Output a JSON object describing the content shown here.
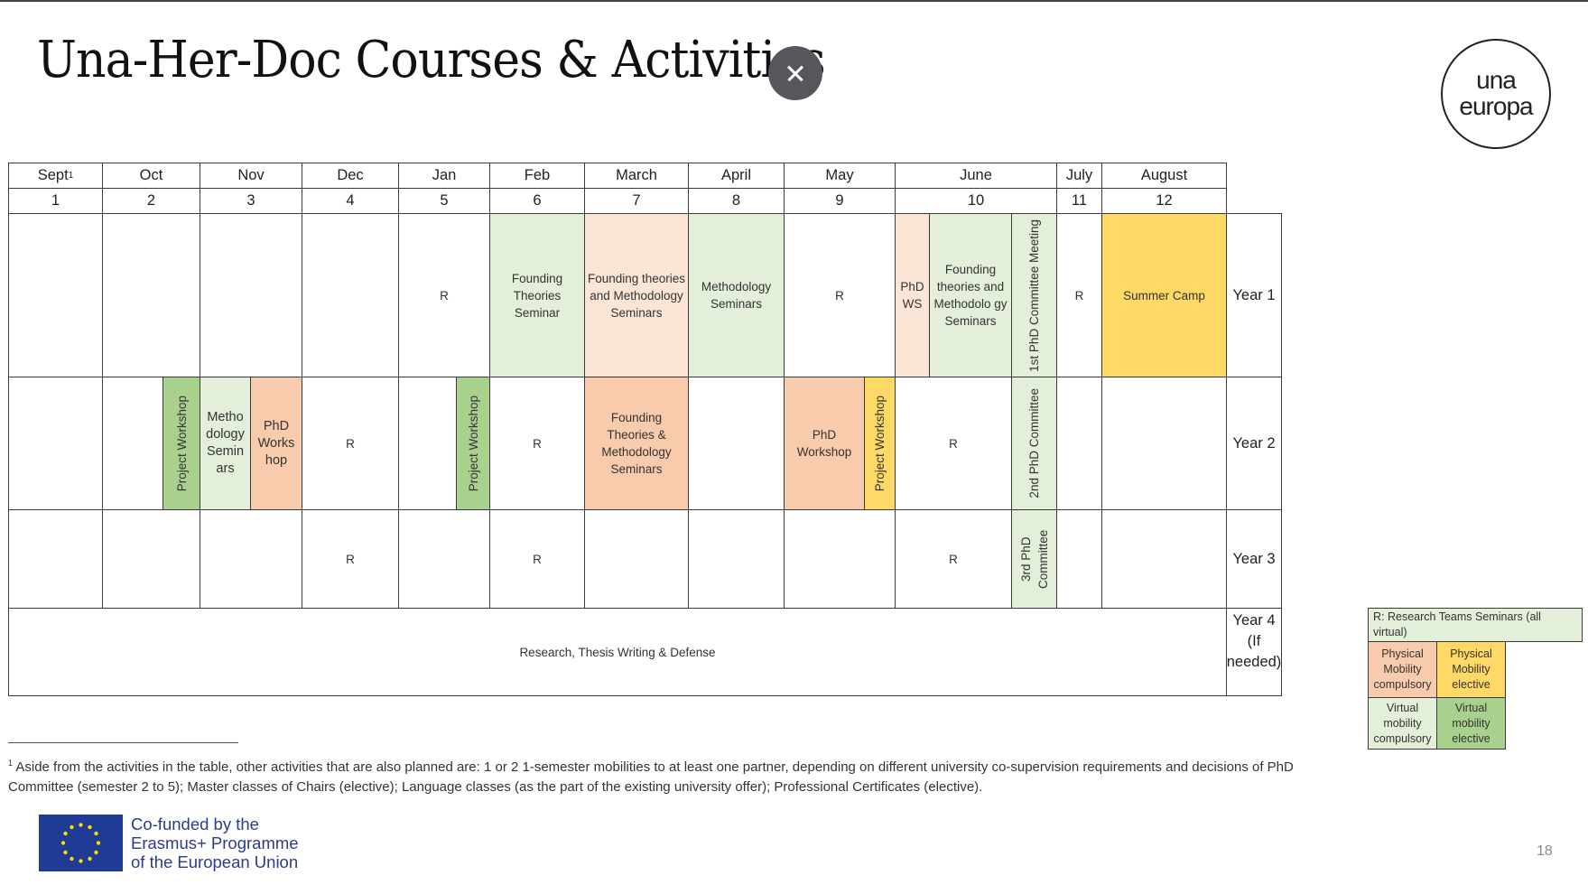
{
  "title": "Una-Her-Doc Courses & Activities",
  "close_icon": "close-icon",
  "logo": {
    "line1": "una",
    "line2": "europa"
  },
  "table": {
    "months": [
      "Sept",
      "Oct",
      "Nov",
      "Dec",
      "Jan",
      "Feb",
      "March",
      "April",
      "May",
      "June",
      "July",
      "August"
    ],
    "sept_footnote_mark": "1",
    "numbers": [
      "1",
      "2",
      "3",
      "4",
      "5",
      "6",
      "7",
      "8",
      "9",
      "10",
      "11",
      "12"
    ],
    "years": [
      "Year 1",
      "Year 2",
      "Year 3",
      "Year 4 (If needed)"
    ],
    "year1": {
      "jan": "R",
      "feb": "Founding Theories Seminar",
      "march": "Founding theories and Methodology Seminars",
      "april": "Methodology Seminars",
      "may": "R",
      "june_phd_ws": "PhD WS",
      "june_founding": "Founding theories and Methodolo gy Seminars",
      "june_committee": "1st PhD Committee Meeting",
      "july": "R",
      "august": "Summer Camp"
    },
    "year2": {
      "oct_project": "Project Workshop",
      "nov_methodology": "Metho dology Semin ars",
      "nov_phd": "PhD Works hop",
      "dec": "R",
      "jan_project": "Project Workshop",
      "feb": "R",
      "march": "Founding Theories & Methodology Seminars",
      "may_phd": "PhD Workshop",
      "may_project": "Project Workshop",
      "june": "R",
      "june_committee": "2nd PhD Committee"
    },
    "year3": {
      "dec": "R",
      "feb": "R",
      "june": "R",
      "june_committee": "3rd PhD Committee"
    },
    "year4": {
      "all": "Research, Thesis Writing & Defense"
    }
  },
  "legend": {
    "r": "R: Research Teams Seminars (all virtual)",
    "physical_compulsory": "Physical Mobility compulsory",
    "physical_elective": "Physical Mobility elective",
    "virtual_compulsory": "Virtual mobility compulsory",
    "virtual_elective": "Virtual mobility elective"
  },
  "colors": {
    "virtual_compulsory": "#e3efd9",
    "physical_compulsory_light": "#fbe5d6",
    "physical_compulsory": "#f8cbad",
    "physical_elective": "#ffd966",
    "virtual_elective": "#a9d18e"
  },
  "footnote": {
    "mark": "1",
    "text": "Aside from the activities in the table, other activities that are also planned are: 1 or 2 1-semester mobilities to at least one partner, depending on different university co-supervision requirements and decisions of PhD Committee (semester 2 to 5); Master classes of Chairs (elective); Language classes (as the part of the existing university offer); Professional Certificates (elective)."
  },
  "eu": {
    "line1": "Co-funded by the",
    "line2": "Erasmus+ Programme",
    "line3": "of the European Union"
  },
  "page_number": "18"
}
